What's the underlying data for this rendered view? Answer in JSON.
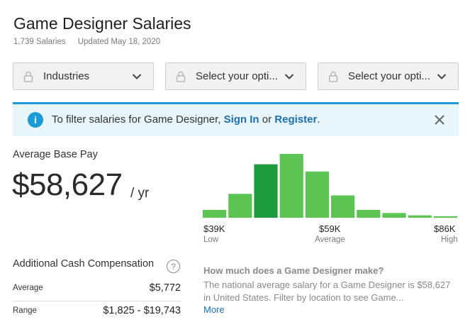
{
  "header": {
    "title": "Game Designer Salaries",
    "salary_count": "1,739 Salaries",
    "updated": "Updated May 18, 2020"
  },
  "filters": [
    {
      "label": "Industries",
      "icon": "lock-icon"
    },
    {
      "label": "Select your opti...",
      "icon": "lock-icon"
    },
    {
      "label": "Select your opti...",
      "icon": "lock-icon"
    }
  ],
  "banner": {
    "prefix": "To filter salaries for Game Designer, ",
    "signin": "Sign In",
    "or": " or ",
    "register": "Register",
    "suffix": ".",
    "accent": "#1a9ad6"
  },
  "pay": {
    "label": "Average Base Pay",
    "value": "$58,627",
    "unit": "/ yr"
  },
  "chart_data": {
    "type": "bar",
    "values": [
      10,
      30,
      67,
      80,
      58,
      28,
      10,
      6,
      3,
      2
    ],
    "highlight_index": 2,
    "colors": {
      "normal": "#5cc452",
      "highlight": "#1e9b3c"
    },
    "ticks": [
      {
        "value": "$39K",
        "sub": "Low"
      },
      {
        "value": "$59K",
        "sub": "Average"
      },
      {
        "value": "$86K",
        "sub": "High"
      }
    ]
  },
  "additional": {
    "label": "Additional Cash Compensation",
    "help": "?",
    "rows": [
      {
        "label": "Average",
        "value": "$5,772"
      },
      {
        "label": "Range",
        "value": "$1,825 - $19,743"
      }
    ]
  },
  "faq": {
    "question": "How much does a Game Designer make?",
    "answer": "The national average salary for a Game Designer is $58,627 in United States. Filter by location to see Game...",
    "more": "More"
  }
}
